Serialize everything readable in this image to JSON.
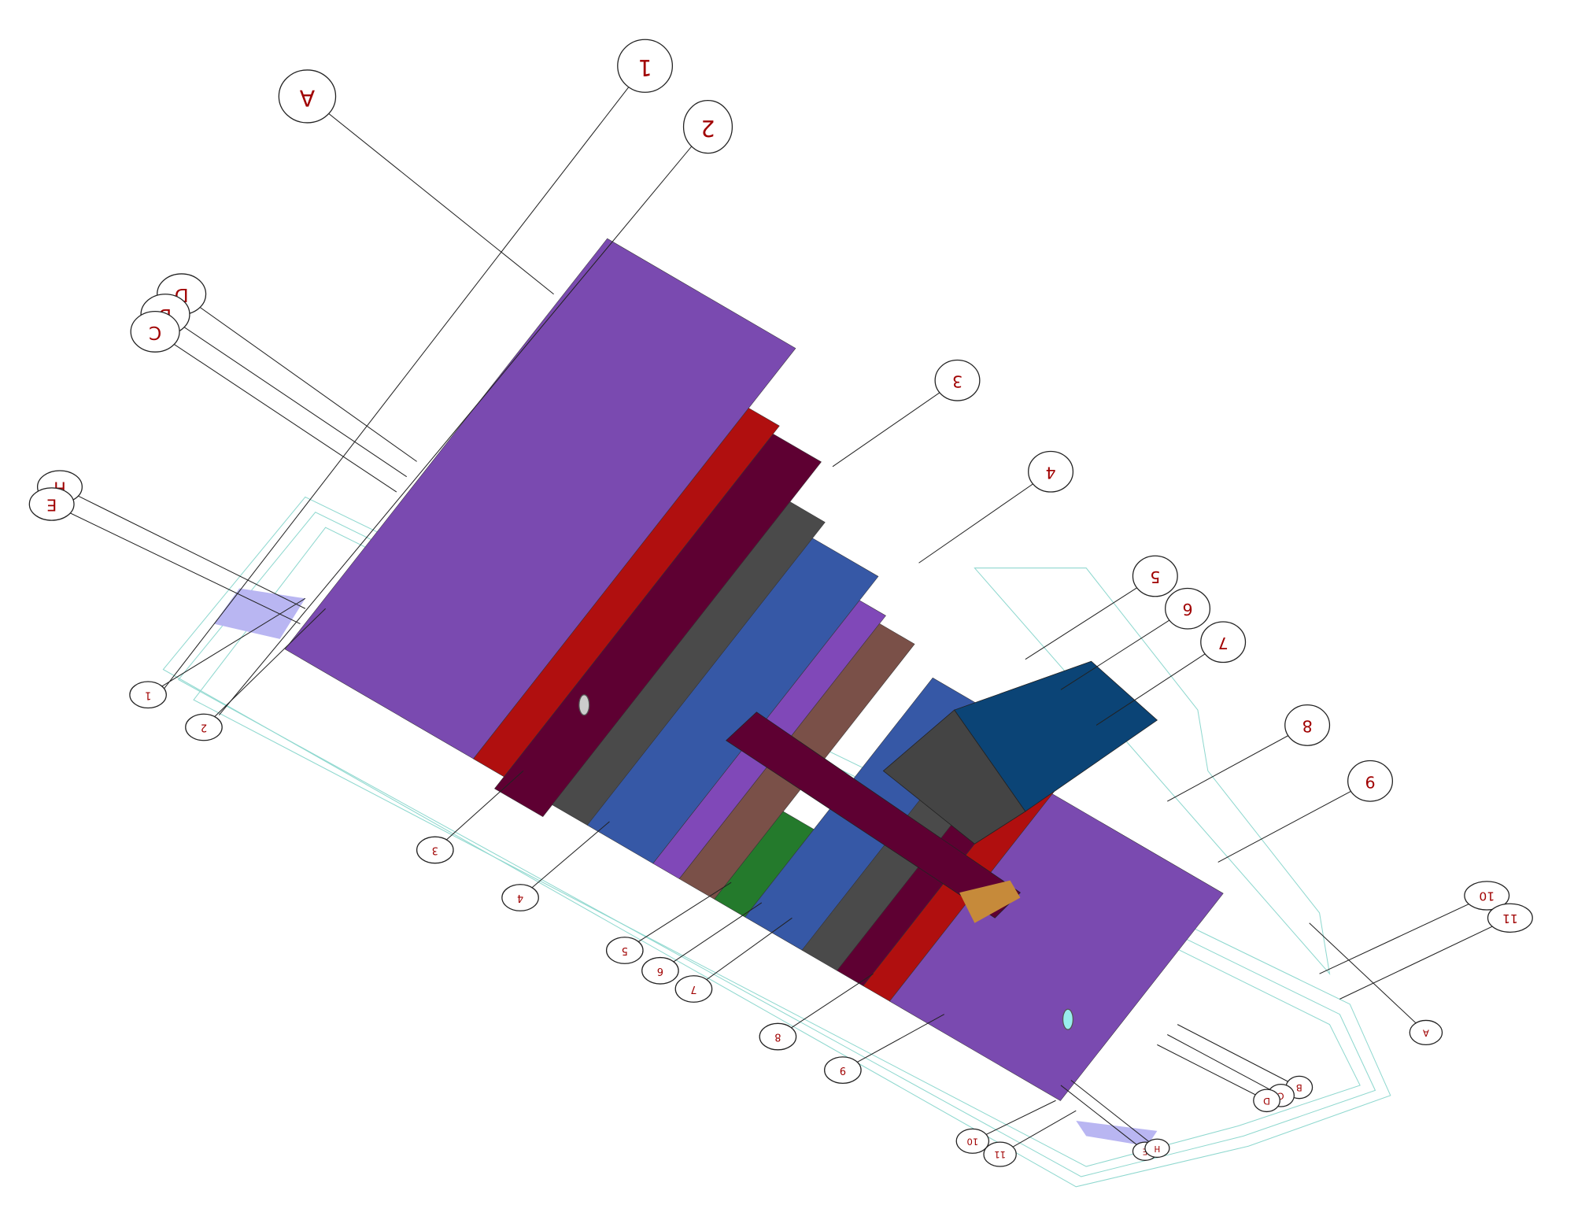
{
  "grid_bubbles_top": [
    "A",
    "1",
    "2",
    "D",
    "B",
    "C",
    "H",
    "E",
    "3",
    "4",
    "5",
    "6",
    "7",
    "8",
    "9",
    "10",
    "11"
  ],
  "grid_bubbles_bottom": [
    "1",
    "2",
    "3",
    "4",
    "5",
    "6",
    "7",
    "8",
    "9",
    "10",
    "11",
    "A",
    "B",
    "C",
    "D",
    "E",
    "H"
  ]
}
